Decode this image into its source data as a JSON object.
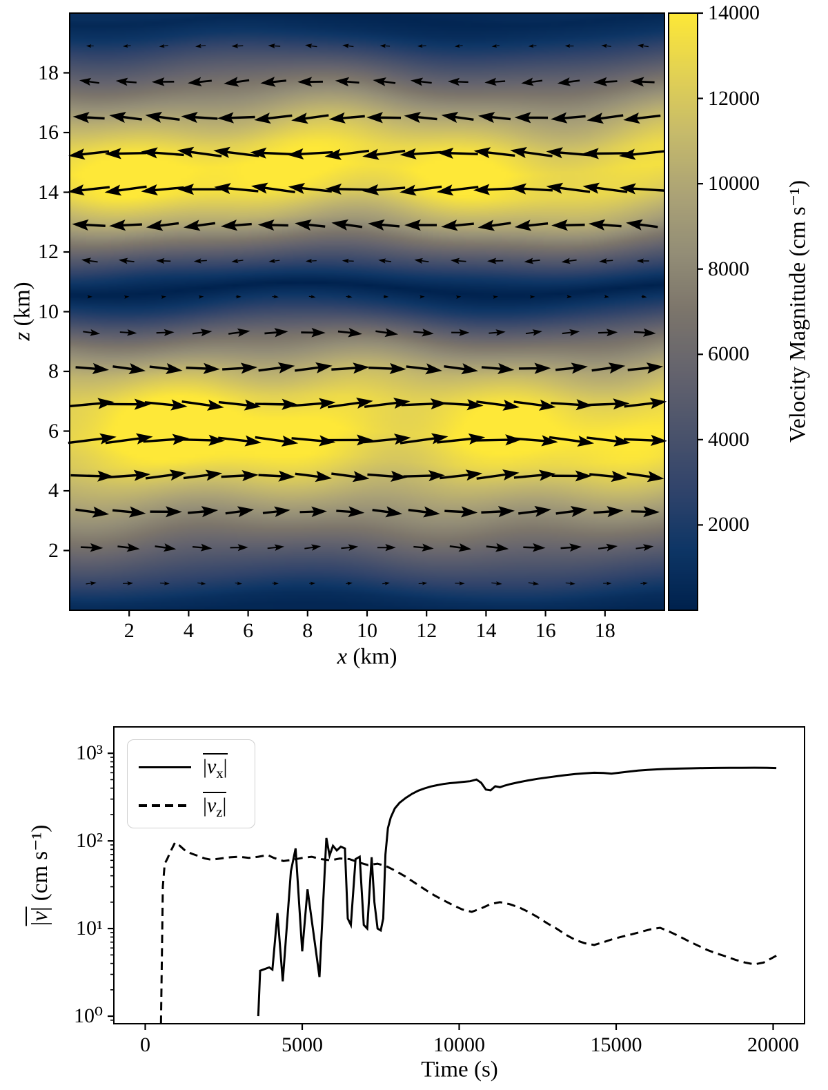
{
  "figure": {
    "background": "#ffffff",
    "ink_color": "#000000"
  },
  "chart_data": [
    {
      "type": "heatmap",
      "subtype": "quiver-over-colormesh",
      "xlabel": {
        "var": "x",
        "rest": " (km)"
      },
      "ylabel": {
        "var": "z",
        "rest": " (km)"
      },
      "x_range": [
        0,
        20
      ],
      "z_range": [
        0,
        20
      ],
      "x_ticks": [
        2,
        4,
        6,
        8,
        10,
        12,
        14,
        16,
        18
      ],
      "z_ticks": [
        2,
        4,
        6,
        8,
        10,
        12,
        14,
        16,
        18
      ],
      "grid": false,
      "colorbar": {
        "label": "Velocity Magnitude (cm s⁻¹)",
        "ticks": [
          2000,
          4000,
          6000,
          8000,
          10000,
          12000,
          14000
        ],
        "vmin": 0,
        "vmax": 14000,
        "colormap": "cividis",
        "stops": [
          "#00224e",
          "#0e3666",
          "#31446b",
          "#4c546c",
          "#65646e",
          "#7c756b",
          "#948e77",
          "#ada476",
          "#c7bb6b",
          "#e3d254",
          "#fee838"
        ]
      },
      "flow_description": "Horizontal shear flow: rightward (+x) jet for 0.3<z<10.7 km peaking near z=5.9 km at ~14000 cm/s; leftward (−x) jet for 10.7<z<19.7 km peaking near z=14.8 km at ~13600 cm/s; near-zero dark bands at z≈0.2, z≈10.7 and z≈19.8 km.",
      "speed_profile": {
        "note": "signed horizontal velocity u (cm/s) versus height z (km); color shows |u|",
        "z": [
          0,
          0.4,
          1,
          2,
          3,
          4,
          5,
          5.9,
          7,
          8,
          9,
          10,
          10.7,
          11.3,
          12,
          13,
          14,
          14.8,
          15.5,
          16.5,
          17.5,
          18.5,
          19.3,
          19.8,
          20
        ],
        "u": [
          400,
          900,
          2600,
          5300,
          8000,
          10600,
          13000,
          14000,
          13100,
          10700,
          7200,
          2800,
          250,
          -2200,
          -5200,
          -9800,
          -12900,
          -13600,
          -12800,
          -10300,
          -7200,
          -4100,
          -1500,
          -500,
          -900
        ]
      },
      "quiver_grid": {
        "x_start": 0.7,
        "x_step": 1.24,
        "z_start": 0.9,
        "z_step": 1.2,
        "nx": 16,
        "nz": 16
      }
    },
    {
      "type": "line",
      "xlabel": "Time (s)",
      "ylabel": {
        "pre": "|",
        "var": "v",
        "post": "|",
        "rest": " (cm s⁻¹)"
      },
      "x_ticks": [
        0,
        5000,
        10000,
        15000,
        20000
      ],
      "y_ticks": {
        "values": [
          1,
          10,
          100,
          1000
        ],
        "labels": [
          "10⁰",
          "10¹",
          "10²",
          "10³"
        ]
      },
      "y_scale": "log",
      "xlim": [
        -1000,
        21000
      ],
      "ylim": [
        0.82,
        2000
      ],
      "legend_position": "upper left",
      "series": [
        {
          "name": "horizontally averaged |v_x|",
          "legend": {
            "pre": "|",
            "var": "v",
            "sub": "x",
            "post": "|"
          },
          "line_style": "solid",
          "x": [
            3600,
            3660,
            3950,
            4050,
            4210,
            4380,
            4640,
            4790,
            5000,
            5170,
            5550,
            5770,
            5870,
            5980,
            6100,
            6230,
            6360,
            6450,
            6550,
            6700,
            6830,
            6960,
            7070,
            7210,
            7300,
            7400,
            7500,
            7580,
            7650,
            7730,
            7820,
            7950,
            8100,
            8300,
            8500,
            8700,
            8900,
            9100,
            9300,
            9500,
            9700,
            9900,
            10100,
            10350,
            10550,
            10700,
            10850,
            11000,
            11150,
            11300,
            11450,
            11650,
            11900,
            12200,
            12500,
            12800,
            13100,
            13400,
            13700,
            14000,
            14300,
            14600,
            14850,
            15100,
            15400,
            15700,
            16000,
            16300,
            16600,
            17000,
            17400,
            17800,
            18200,
            18600,
            19000,
            19400,
            19800,
            20100
          ],
          "y": [
            1.0,
            3.3,
            3.6,
            3.4,
            15,
            2.5,
            45,
            82,
            5.5,
            28,
            2.8,
            108,
            68,
            88,
            78,
            86,
            82,
            13,
            11,
            62,
            66,
            11,
            10,
            65,
            20,
            10,
            9.5,
            13,
            70,
            140,
            185,
            235,
            272,
            310,
            345,
            375,
            398,
            418,
            433,
            446,
            456,
            463,
            470,
            480,
            502,
            460,
            385,
            378,
            420,
            410,
            428,
            447,
            468,
            490,
            511,
            529,
            547,
            564,
            579,
            591,
            600,
            597,
            586,
            600,
            619,
            635,
            647,
            656,
            663,
            669,
            674,
            678,
            681,
            683,
            684,
            685,
            683,
            678
          ]
        },
        {
          "name": "horizontally averaged |v_z|",
          "legend": {
            "pre": "|",
            "var": "v",
            "sub": "z",
            "post": "|"
          },
          "line_style": "dashed",
          "x": [
            500,
            560,
            620,
            700,
            800,
            950,
            1100,
            1300,
            1500,
            1700,
            1900,
            2100,
            2400,
            2700,
            3000,
            3300,
            3600,
            3900,
            4100,
            4400,
            4700,
            5000,
            5300,
            5600,
            5900,
            6200,
            6500,
            6800,
            7100,
            7400,
            7700,
            8000,
            8300,
            8600,
            8900,
            9200,
            9500,
            9800,
            10100,
            10400,
            10700,
            11000,
            11300,
            11600,
            11900,
            12200,
            12500,
            12800,
            13100,
            13400,
            13700,
            14000,
            14300,
            14600,
            14900,
            15200,
            15500,
            15800,
            16100,
            16400,
            16700,
            17000,
            17300,
            17600,
            17900,
            18200,
            18500,
            18800,
            19100,
            19400,
            19700,
            20100
          ],
          "y": [
            0.82,
            30,
            55,
            62,
            75,
            96,
            88,
            76,
            71,
            67,
            63,
            61,
            63,
            65,
            66,
            64,
            66,
            69,
            64,
            59,
            61,
            64,
            66,
            62,
            60,
            63,
            62,
            57,
            53,
            55,
            51,
            45,
            39,
            33,
            28,
            24,
            21,
            18.5,
            16.5,
            15.5,
            17,
            19,
            20,
            19,
            17.5,
            15.5,
            13.5,
            11.5,
            10,
            8.5,
            7.4,
            6.8,
            6.5,
            7,
            7.6,
            8.1,
            8.6,
            9.2,
            9.8,
            10.2,
            9.2,
            8.2,
            7.2,
            6.4,
            5.7,
            5.2,
            4.8,
            4.4,
            4.1,
            3.9,
            4.1,
            4.9
          ]
        }
      ]
    }
  ]
}
